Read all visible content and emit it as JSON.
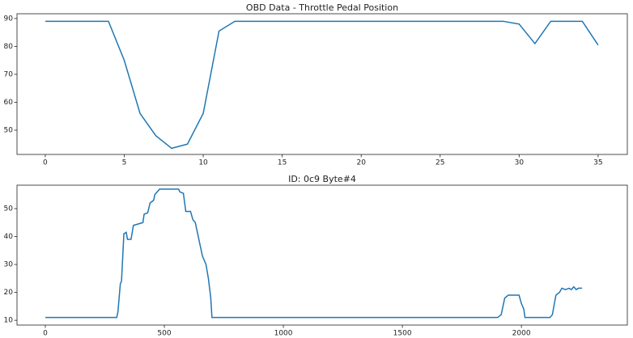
{
  "chart_data": [
    {
      "type": "line",
      "title": "OBD Data - Throttle Pedal Position",
      "x": [
        0,
        1,
        2,
        3,
        4,
        5,
        6,
        7,
        8,
        9,
        10,
        11,
        12,
        13,
        14,
        15,
        16,
        17,
        18,
        19,
        20,
        21,
        22,
        23,
        24,
        25,
        26,
        27,
        28,
        29,
        30,
        31,
        32,
        33,
        34,
        35
      ],
      "series": [
        {
          "color": "#1f77b4",
          "values": [
            89,
            89,
            89,
            89,
            89,
            75,
            56,
            48,
            43.5,
            45,
            56,
            85.5,
            89,
            89,
            89,
            89,
            89,
            89,
            89,
            89,
            89,
            89,
            89,
            89,
            89,
            89,
            89,
            89,
            89,
            89,
            88,
            81,
            89,
            89,
            89,
            80.5
          ]
        }
      ],
      "xlim": [
        -1.79,
        36.85
      ],
      "ylim": [
        41.3,
        91.7
      ],
      "xticks": [
        0,
        5,
        10,
        15,
        20,
        25,
        30,
        35
      ],
      "yticks": [
        50,
        60,
        70,
        80,
        90
      ]
    },
    {
      "type": "line",
      "title": "ID: 0c9 Byte#4",
      "x": [
        0,
        300,
        305,
        315,
        320,
        330,
        340,
        345,
        360,
        370,
        390,
        410,
        415,
        430,
        440,
        455,
        460,
        470,
        480,
        560,
        565,
        580,
        590,
        610,
        620,
        630,
        640,
        650,
        660,
        675,
        685,
        695,
        700,
        1900,
        1915,
        1930,
        1945,
        1990,
        2000,
        2010,
        2015,
        2120,
        2130,
        2145,
        2160,
        2170,
        2185,
        2200,
        2210,
        2220,
        2230,
        2240,
        2255
      ],
      "series": [
        {
          "color": "#1f77b4",
          "values": [
            11,
            11,
            13,
            23,
            24,
            41,
            41.5,
            39,
            39,
            44,
            44.5,
            45,
            48,
            48.5,
            52,
            53,
            55,
            56,
            57,
            57,
            56,
            55.5,
            49,
            49,
            46,
            45,
            41,
            37,
            33,
            30,
            25,
            18,
            11,
            11,
            12,
            18,
            19,
            19,
            16,
            14,
            11,
            11,
            12,
            19,
            20,
            21.5,
            21,
            21.5,
            21,
            22,
            21,
            21.5,
            21.5
          ]
        }
      ],
      "xlim": [
        -119,
        2445
      ],
      "ylim": [
        8.3,
        58.4
      ],
      "xticks": [
        0,
        500,
        1000,
        1500,
        2000
      ],
      "yticks": [
        10,
        20,
        30,
        40,
        50
      ]
    }
  ]
}
